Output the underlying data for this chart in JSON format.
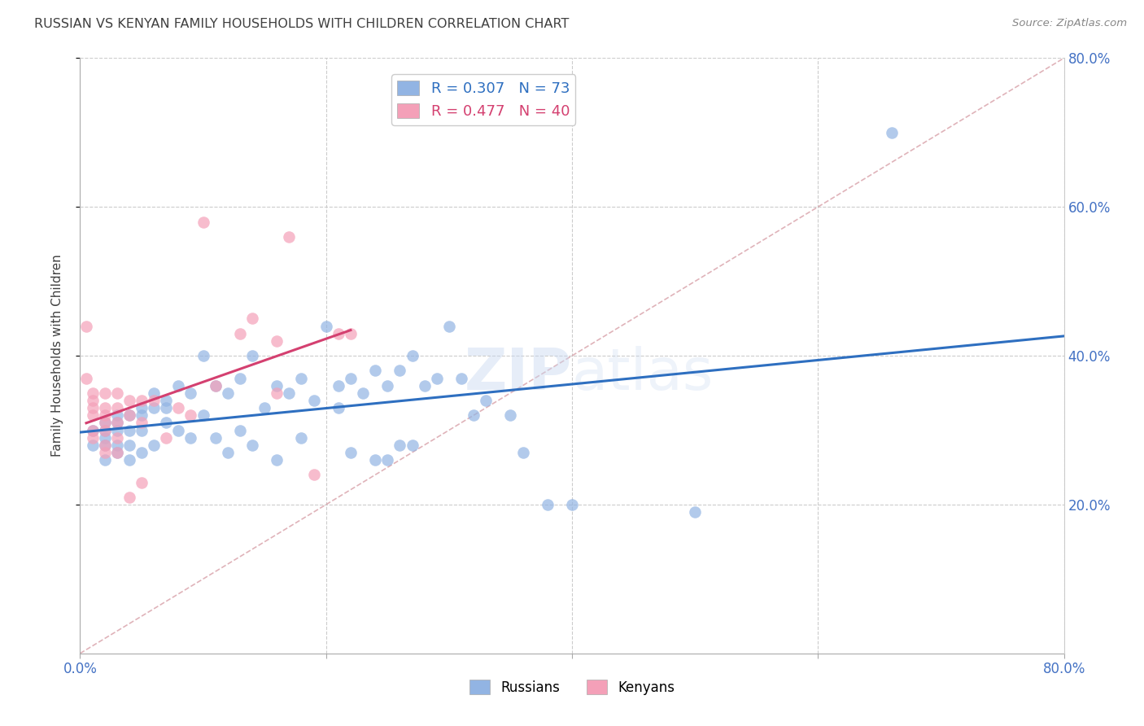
{
  "title": "RUSSIAN VS KENYAN FAMILY HOUSEHOLDS WITH CHILDREN CORRELATION CHART",
  "source": "Source: ZipAtlas.com",
  "ylabel": "Family Households with Children",
  "xlim": [
    0.0,
    0.8
  ],
  "ylim": [
    0.0,
    0.8
  ],
  "xticks": [
    0.0,
    0.2,
    0.4,
    0.6,
    0.8
  ],
  "yticks": [
    0.2,
    0.4,
    0.6,
    0.8
  ],
  "xticklabels": [
    "0.0%",
    "",
    "",
    "",
    "80.0%"
  ],
  "yticklabels_right": [
    "20.0%",
    "40.0%",
    "60.0%",
    "80.0%"
  ],
  "russian_color": "#92B4E3",
  "kenyan_color": "#F4A0B8",
  "russian_line_color": "#2E6FC0",
  "kenyan_line_color": "#D44070",
  "diagonal_color": "#D8A0A8",
  "russian_R": 0.307,
  "russian_N": 73,
  "kenyan_R": 0.477,
  "kenyan_N": 40,
  "russians_x": [
    0.01,
    0.01,
    0.02,
    0.02,
    0.02,
    0.02,
    0.02,
    0.03,
    0.03,
    0.03,
    0.03,
    0.03,
    0.04,
    0.04,
    0.04,
    0.04,
    0.05,
    0.05,
    0.05,
    0.05,
    0.06,
    0.06,
    0.06,
    0.07,
    0.07,
    0.07,
    0.08,
    0.08,
    0.09,
    0.09,
    0.1,
    0.1,
    0.11,
    0.11,
    0.12,
    0.12,
    0.13,
    0.13,
    0.14,
    0.14,
    0.15,
    0.16,
    0.16,
    0.17,
    0.18,
    0.18,
    0.19,
    0.2,
    0.21,
    0.21,
    0.22,
    0.22,
    0.23,
    0.24,
    0.24,
    0.25,
    0.25,
    0.26,
    0.26,
    0.27,
    0.27,
    0.28,
    0.29,
    0.3,
    0.31,
    0.32,
    0.33,
    0.35,
    0.36,
    0.38,
    0.4,
    0.5,
    0.66
  ],
  "russians_y": [
    0.3,
    0.28,
    0.31,
    0.3,
    0.29,
    0.28,
    0.26,
    0.32,
    0.31,
    0.3,
    0.28,
    0.27,
    0.32,
    0.3,
    0.28,
    0.26,
    0.33,
    0.32,
    0.3,
    0.27,
    0.35,
    0.33,
    0.28,
    0.34,
    0.33,
    0.31,
    0.36,
    0.3,
    0.35,
    0.29,
    0.4,
    0.32,
    0.36,
    0.29,
    0.35,
    0.27,
    0.37,
    0.3,
    0.4,
    0.28,
    0.33,
    0.36,
    0.26,
    0.35,
    0.37,
    0.29,
    0.34,
    0.44,
    0.36,
    0.33,
    0.37,
    0.27,
    0.35,
    0.38,
    0.26,
    0.36,
    0.26,
    0.38,
    0.28,
    0.4,
    0.28,
    0.36,
    0.37,
    0.44,
    0.37,
    0.32,
    0.34,
    0.32,
    0.27,
    0.2,
    0.2,
    0.19,
    0.7
  ],
  "kenyans_x": [
    0.005,
    0.005,
    0.01,
    0.01,
    0.01,
    0.01,
    0.01,
    0.01,
    0.02,
    0.02,
    0.02,
    0.02,
    0.02,
    0.02,
    0.02,
    0.03,
    0.03,
    0.03,
    0.03,
    0.03,
    0.04,
    0.04,
    0.04,
    0.05,
    0.05,
    0.05,
    0.06,
    0.07,
    0.08,
    0.09,
    0.1,
    0.11,
    0.13,
    0.14,
    0.16,
    0.16,
    0.17,
    0.19,
    0.21,
    0.22
  ],
  "kenyans_y": [
    0.44,
    0.37,
    0.35,
    0.34,
    0.33,
    0.32,
    0.3,
    0.29,
    0.35,
    0.33,
    0.32,
    0.31,
    0.3,
    0.28,
    0.27,
    0.35,
    0.33,
    0.31,
    0.29,
    0.27,
    0.34,
    0.32,
    0.21,
    0.34,
    0.31,
    0.23,
    0.34,
    0.29,
    0.33,
    0.32,
    0.58,
    0.36,
    0.43,
    0.45,
    0.42,
    0.35,
    0.56,
    0.24,
    0.43,
    0.43
  ],
  "background_color": "#FFFFFF",
  "grid_color": "#CCCCCC",
  "tick_color": "#4472C4",
  "title_color": "#404040",
  "ylabel_color": "#404040",
  "watermark": "ZIPatlas"
}
